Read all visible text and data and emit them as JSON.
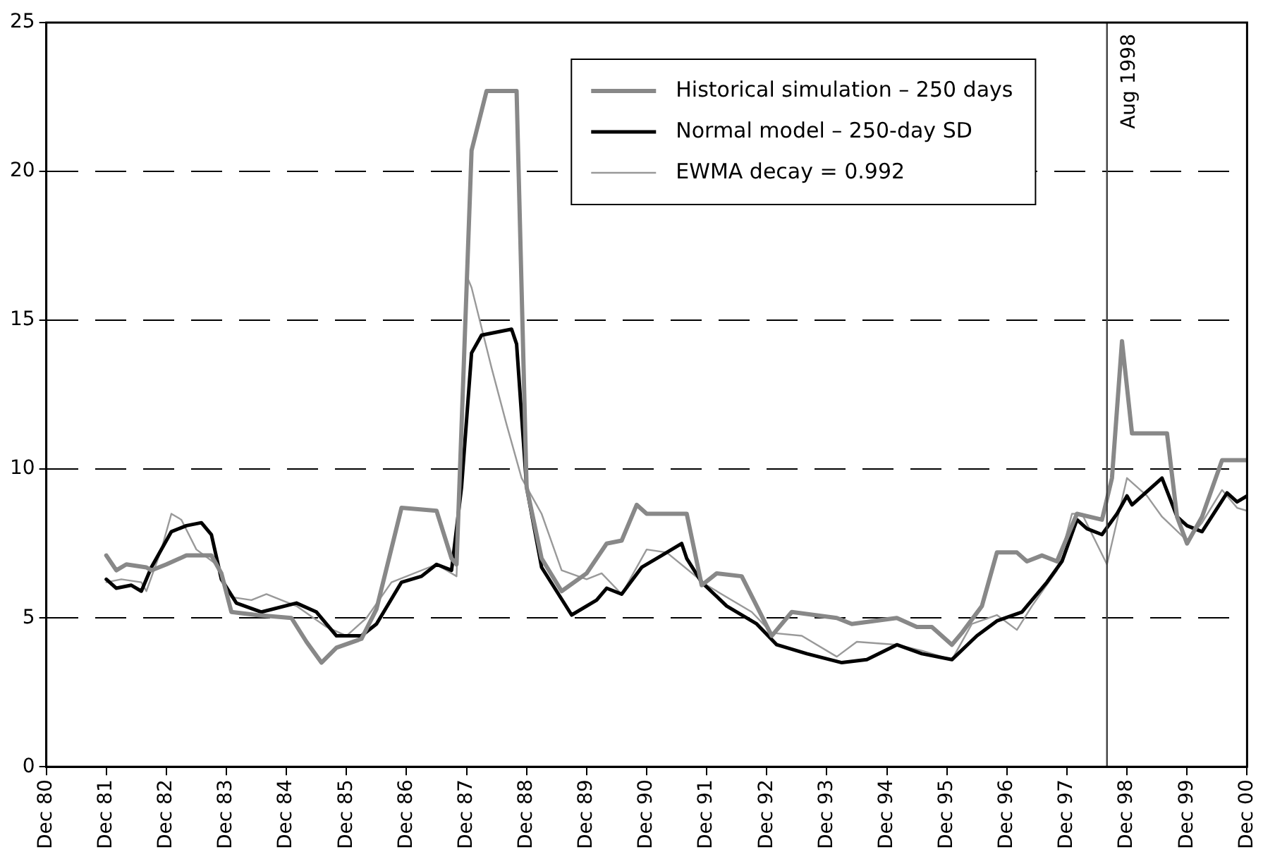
{
  "chart_data": {
    "type": "line",
    "xlim": [
      "1980-12",
      "2000-12"
    ],
    "xticks": [
      {
        "value": "1980-12",
        "label": "Dec 80"
      },
      {
        "value": "1981-12",
        "label": "Dec 81"
      },
      {
        "value": "1982-12",
        "label": "Dec 82"
      },
      {
        "value": "1983-12",
        "label": "Dec 83"
      },
      {
        "value": "1984-12",
        "label": "Dec 84"
      },
      {
        "value": "1985-12",
        "label": "Dec 85"
      },
      {
        "value": "1986-12",
        "label": "Dec 86"
      },
      {
        "value": "1987-12",
        "label": "Dec 87"
      },
      {
        "value": "1988-12",
        "label": "Dec 88"
      },
      {
        "value": "1989-12",
        "label": "Dec 89"
      },
      {
        "value": "1990-12",
        "label": "Dec 90"
      },
      {
        "value": "1991-12",
        "label": "Dec 91"
      },
      {
        "value": "1992-12",
        "label": "Dec 92"
      },
      {
        "value": "1993-12",
        "label": "Dec 93"
      },
      {
        "value": "1994-12",
        "label": "Dec 94"
      },
      {
        "value": "1995-12",
        "label": "Dec 95"
      },
      {
        "value": "1996-12",
        "label": "Dec 96"
      },
      {
        "value": "1997-12",
        "label": "Dec 97"
      },
      {
        "value": "1998-12",
        "label": "Dec 98"
      },
      {
        "value": "1999-12",
        "label": "Dec 99"
      },
      {
        "value": "2000-12",
        "label": "Dec 00"
      }
    ],
    "ylim": [
      0,
      25
    ],
    "yticks": [
      0,
      5,
      10,
      15,
      20,
      25
    ],
    "grid": "y",
    "legend": "top right",
    "marker": "none",
    "line_style": "solid",
    "ref_lines": [
      {
        "axis": "x",
        "value": "1998-08",
        "label": "Aug 1998",
        "color": "#404040"
      }
    ],
    "series": [
      {
        "name": "Historical simulation – 250 days",
        "color": "#888888",
        "x": [
          "1981-12",
          "1982-02",
          "1982-04",
          "1982-08",
          "1982-09",
          "1982-12",
          "1983-04",
          "1983-09",
          "1983-11",
          "1984-01",
          "1984-06",
          "1985-01",
          "1985-04",
          "1985-07",
          "1985-10",
          "1986-03",
          "1986-06",
          "1986-11",
          "1987-06",
          "1987-09",
          "1987-10",
          "1988-01",
          "1988-04",
          "1988-10",
          "1988-12",
          "1989-03",
          "1989-07",
          "1989-12",
          "1990-04",
          "1990-07",
          "1990-10",
          "1990-12",
          "1991-08",
          "1991-11",
          "1992-02",
          "1992-07",
          "1993-01",
          "1993-05",
          "1994-02",
          "1994-05",
          "1995-02",
          "1995-06",
          "1995-09",
          "1996-01",
          "1996-03",
          "1996-07",
          "1996-10",
          "1997-02",
          "1997-04",
          "1997-07",
          "1997-10",
          "1998-02",
          "1998-07",
          "1998-09",
          "1998-11",
          "1999-01",
          "1999-08",
          "1999-10",
          "1999-12",
          "2000-03",
          "2000-07",
          "2000-12"
        ],
        "values": [
          7.1,
          6.6,
          6.8,
          6.7,
          6.6,
          6.8,
          7.1,
          7.1,
          6.5,
          5.2,
          5.1,
          5.0,
          4.2,
          3.5,
          4.0,
          4.3,
          5.3,
          8.7,
          8.6,
          7.0,
          6.8,
          20.7,
          22.7,
          22.7,
          9.4,
          7.0,
          5.9,
          6.5,
          7.5,
          7.6,
          8.8,
          8.5,
          8.5,
          6.1,
          6.5,
          6.4,
          4.4,
          5.2,
          5.0,
          4.8,
          5.0,
          4.7,
          4.7,
          4.1,
          4.5,
          5.4,
          7.2,
          7.2,
          6.9,
          7.1,
          6.9,
          8.5,
          8.3,
          9.7,
          14.3,
          11.2,
          11.2,
          8.4,
          7.5,
          8.4,
          10.3,
          10.3
        ]
      },
      {
        "name": "Normal model – 250-day SD",
        "color": "#000000",
        "x": [
          "1981-12",
          "1982-02",
          "1982-05",
          "1982-07",
          "1982-09",
          "1983-01",
          "1983-04",
          "1983-07",
          "1983-09",
          "1983-11",
          "1984-02",
          "1984-07",
          "1985-02",
          "1985-06",
          "1985-10",
          "1986-03",
          "1986-06",
          "1986-11",
          "1987-03",
          "1987-06",
          "1987-09",
          "1987-11",
          "1988-01",
          "1988-03",
          "1988-06",
          "1988-09",
          "1988-10",
          "1988-12",
          "1989-03",
          "1989-09",
          "1990-02",
          "1990-04",
          "1990-07",
          "1990-11",
          "1991-03",
          "1991-07",
          "1991-08",
          "1991-11",
          "1992-04",
          "1992-10",
          "1993-02",
          "1993-08",
          "1994-03",
          "1994-08",
          "1995-02",
          "1995-07",
          "1996-01",
          "1996-06",
          "1996-10",
          "1997-03",
          "1997-08",
          "1997-11",
          "1998-02",
          "1998-04",
          "1998-07",
          "1998-10",
          "1998-12",
          "1999-01",
          "1999-07",
          "1999-10",
          "1999-12",
          "2000-03",
          "2000-08",
          "2000-10",
          "2000-12"
        ],
        "values": [
          6.3,
          6.0,
          6.1,
          5.9,
          6.7,
          7.9,
          8.1,
          8.2,
          7.8,
          6.3,
          5.5,
          5.2,
          5.5,
          5.2,
          4.4,
          4.4,
          4.8,
          6.2,
          6.4,
          6.8,
          6.6,
          9.4,
          13.9,
          14.5,
          14.6,
          14.7,
          14.2,
          9.4,
          6.7,
          5.1,
          5.6,
          6.0,
          5.8,
          6.7,
          7.1,
          7.5,
          7.0,
          6.2,
          5.4,
          4.8,
          4.1,
          3.8,
          3.5,
          3.6,
          4.1,
          3.8,
          3.6,
          4.4,
          4.9,
          5.2,
          6.2,
          6.9,
          8.3,
          8.0,
          7.8,
          8.5,
          9.1,
          8.8,
          9.7,
          8.4,
          8.1,
          7.9,
          9.2,
          8.9,
          9.1
        ]
      },
      {
        "name": "EWMA decay = 0.992",
        "color": "#999999",
        "x": [
          "1981-12",
          "1982-03",
          "1982-07",
          "1982-08",
          "1982-11",
          "1983-01",
          "1983-03",
          "1983-06",
          "1983-10",
          "1984-01",
          "1984-05",
          "1984-08",
          "1985-02",
          "1985-08",
          "1985-12",
          "1986-04",
          "1986-09",
          "1987-06",
          "1987-10",
          "1987-12",
          "1988-01",
          "1988-05",
          "1988-08",
          "1988-11",
          "1989-03",
          "1989-07",
          "1989-12",
          "1990-03",
          "1990-07",
          "1990-12",
          "1991-04",
          "1991-12",
          "1992-09",
          "1993-01",
          "1993-07",
          "1994-02",
          "1994-06",
          "1995-02",
          "1995-07",
          "1996-01",
          "1996-05",
          "1996-10",
          "1997-02",
          "1997-05",
          "1997-10",
          "1998-01",
          "1998-03",
          "1998-08",
          "1998-12",
          "1999-04",
          "1999-07",
          "1999-12",
          "2000-03",
          "2000-07",
          "2000-10",
          "2000-12"
        ],
        "values": [
          6.2,
          6.3,
          6.2,
          5.9,
          7.3,
          8.5,
          8.3,
          7.3,
          6.8,
          5.7,
          5.6,
          5.8,
          5.4,
          4.7,
          4.4,
          5.0,
          6.2,
          6.8,
          6.4,
          16.5,
          16.1,
          13.4,
          11.5,
          9.7,
          8.5,
          6.6,
          6.3,
          6.5,
          5.8,
          7.3,
          7.2,
          6.1,
          5.2,
          4.5,
          4.4,
          3.7,
          4.2,
          4.1,
          3.9,
          3.6,
          4.8,
          5.1,
          4.6,
          5.4,
          6.6,
          8.5,
          8.5,
          6.8,
          9.7,
          9.1,
          8.4,
          7.6,
          8.2,
          9.3,
          8.7,
          8.6
        ]
      }
    ]
  }
}
